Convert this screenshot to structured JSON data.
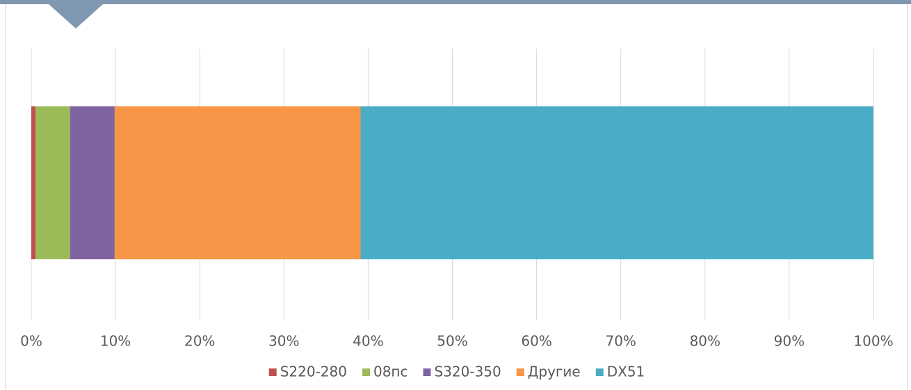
{
  "chart_data": {
    "type": "stacked_bar_horizontal",
    "categories": [
      null
    ],
    "series": [
      {
        "name": "S220-280",
        "color": "#c0504d",
        "values": [
          0.5
        ]
      },
      {
        "name": "08пс",
        "color": "#9bbb59",
        "values": [
          4.1
        ]
      },
      {
        "name": "S320-350",
        "color": "#8064a2",
        "values": [
          5.3
        ]
      },
      {
        "name": "Другие",
        "color": "#f79646",
        "values": [
          29.2
        ]
      },
      {
        "name": "DX51",
        "color": "#4bacc6",
        "values": [
          60.9
        ]
      }
    ],
    "xlim": [
      0,
      100
    ],
    "xticks": [
      {
        "value": 0,
        "label": "0%"
      },
      {
        "value": 10,
        "label": "10%"
      },
      {
        "value": 20,
        "label": "20%"
      },
      {
        "value": 30,
        "label": "30%"
      },
      {
        "value": 40,
        "label": "40%"
      },
      {
        "value": 50,
        "label": "50%"
      },
      {
        "value": 60,
        "label": "60%"
      },
      {
        "value": 70,
        "label": "70%"
      },
      {
        "value": 80,
        "label": "80%"
      },
      {
        "value": 90,
        "label": "90%"
      },
      {
        "value": 100,
        "label": "100%"
      }
    ],
    "grid": true,
    "legend": "bottom"
  }
}
